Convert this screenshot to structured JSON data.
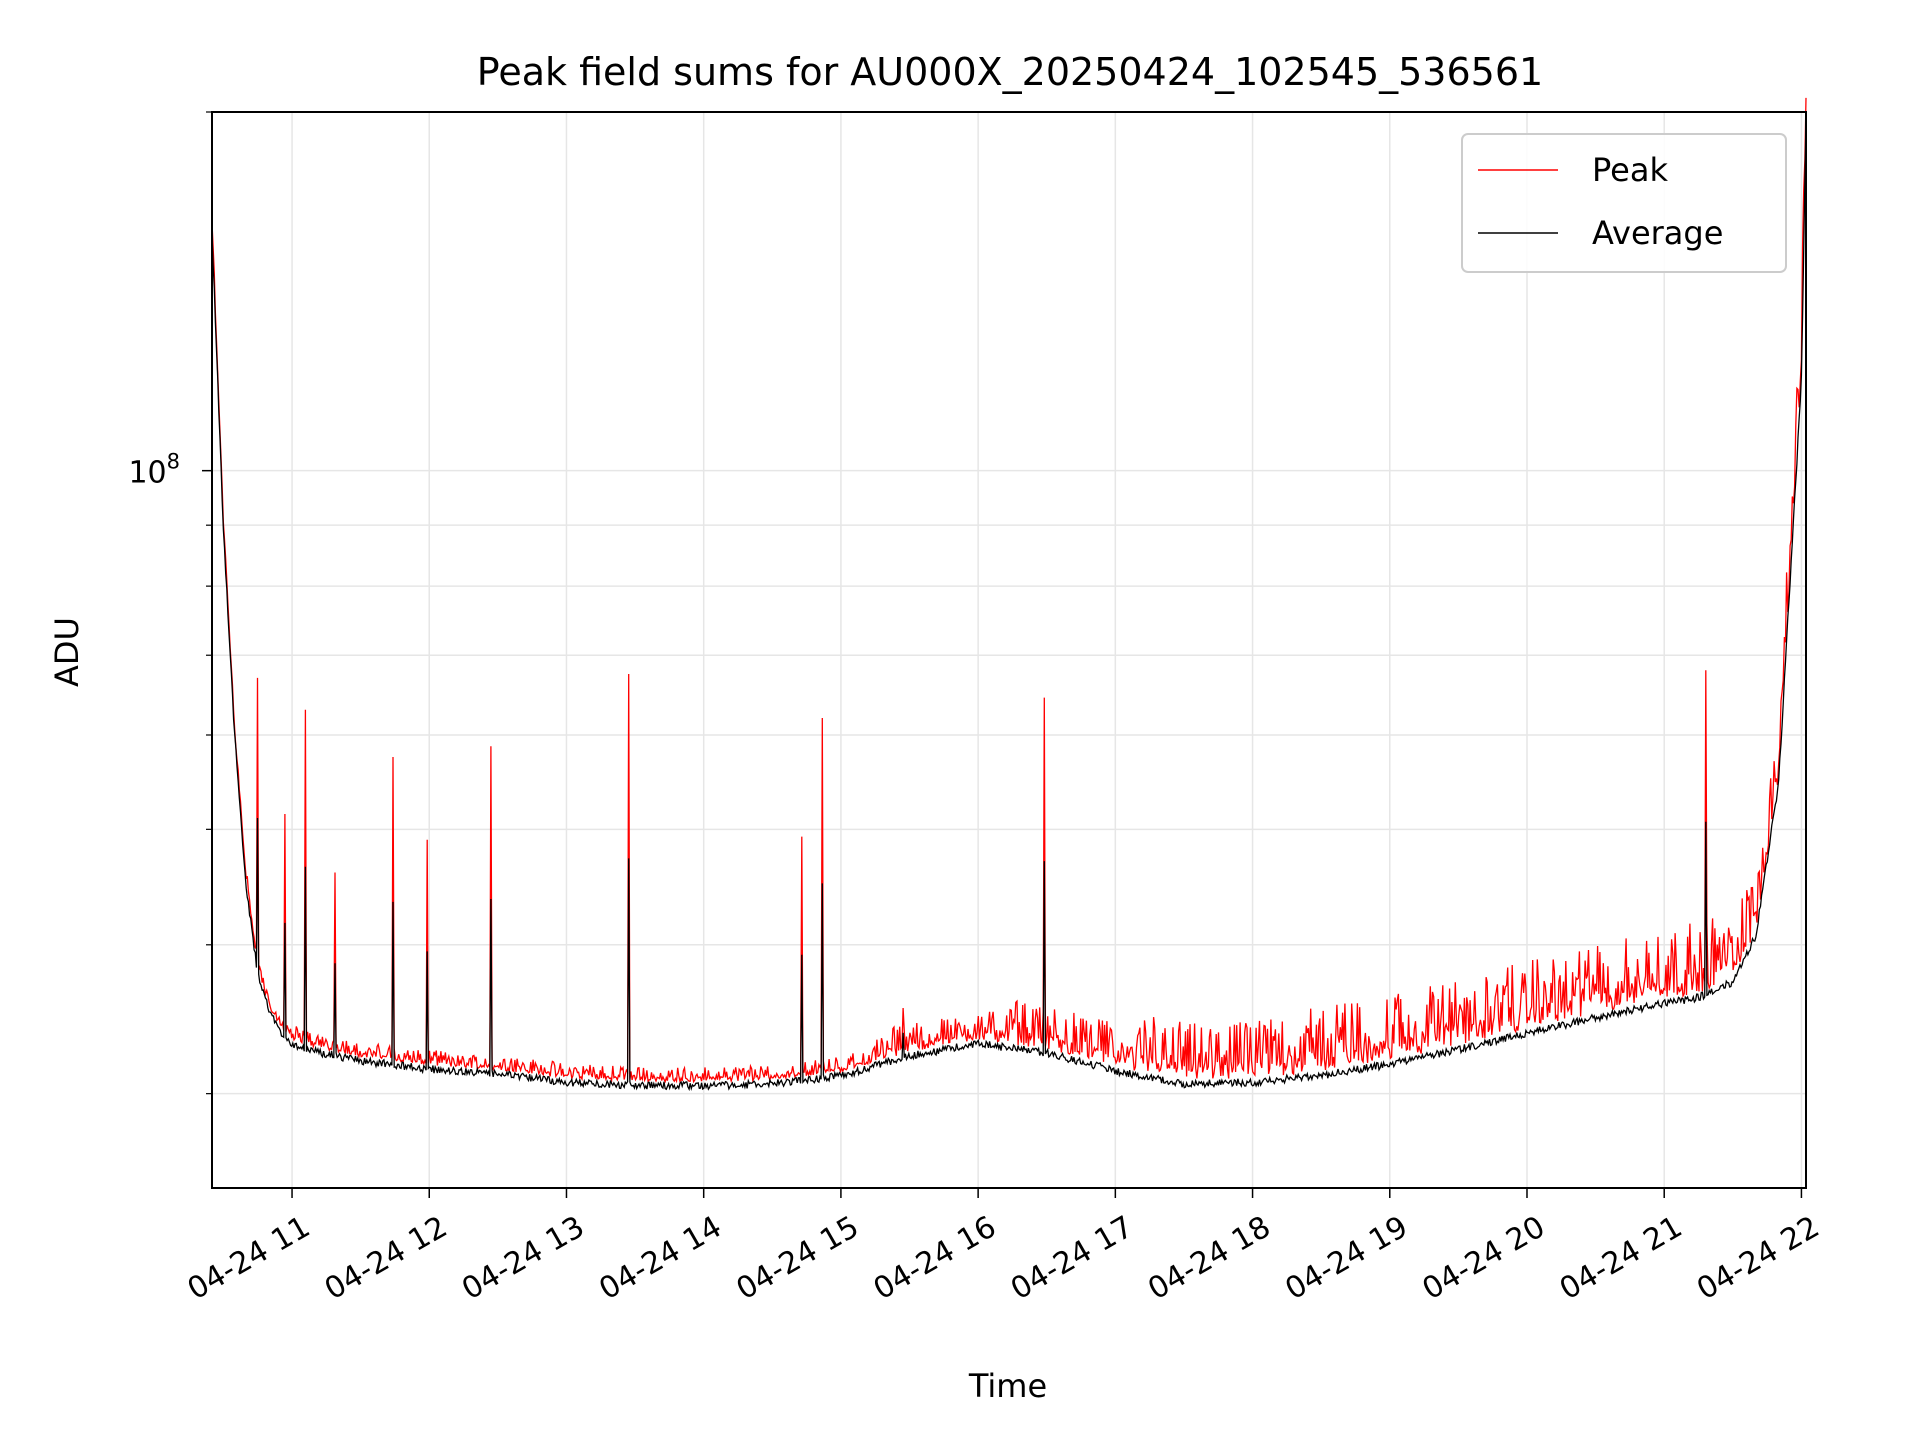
{
  "chart_data": {
    "type": "line",
    "title": "Peak field sums for AU000X_20250424_102545_536561",
    "xlabel": "Time",
    "ylabel": "ADU",
    "y_scale": "log",
    "y_tick_label": {
      "base": "10",
      "exponent": "8",
      "value": 100000000
    },
    "xlim": [
      "2025-04-24 10:25",
      "2025-04-24 22:02"
    ],
    "ylim": [
      25000000,
      200000000
    ],
    "grid": true,
    "legend": {
      "placement": "top-right",
      "entries": [
        "Peak",
        "Average"
      ]
    },
    "x_tick_labels": [
      "04-24 11",
      "04-24 12",
      "04-24 13",
      "04-24 14",
      "04-24 15",
      "04-24 16",
      "04-24 17",
      "04-24 18",
      "04-24 19",
      "04-24 20",
      "04-24 21",
      "04-24 22"
    ],
    "x_ticks": [
      "2025-04-24 11:00",
      "2025-04-24 12:00",
      "2025-04-24 13:00",
      "2025-04-24 14:00",
      "2025-04-24 15:00",
      "2025-04-24 16:00",
      "2025-04-24 17:00",
      "2025-04-24 18:00",
      "2025-04-24 19:00",
      "2025-04-24 20:00",
      "2025-04-24 21:00",
      "2025-04-24 22:00"
    ],
    "series": [
      {
        "name": "Average",
        "color": "#000000",
        "x": [
          "2025-04-24 10:25",
          "2025-04-24 10:30",
          "2025-04-24 10:35",
          "2025-04-24 10:40",
          "2025-04-24 10:45",
          "2025-04-24 10:50",
          "2025-04-24 10:55",
          "2025-04-24 11:00",
          "2025-04-24 11:10",
          "2025-04-24 11:30",
          "2025-04-24 12:00",
          "2025-04-24 12:30",
          "2025-04-24 13:00",
          "2025-04-24 13:30",
          "2025-04-24 14:00",
          "2025-04-24 14:30",
          "2025-04-24 15:00",
          "2025-04-24 15:30",
          "2025-04-24 16:00",
          "2025-04-24 16:30",
          "2025-04-24 17:00",
          "2025-04-24 17:30",
          "2025-04-24 18:00",
          "2025-04-24 18:30",
          "2025-04-24 19:00",
          "2025-04-24 19:30",
          "2025-04-24 20:00",
          "2025-04-24 20:30",
          "2025-04-24 21:00",
          "2025-04-24 21:15",
          "2025-04-24 21:30",
          "2025-04-24 21:40",
          "2025-04-24 21:50",
          "2025-04-24 22:00",
          "2025-04-24 22:02"
        ],
        "values": [
          160000000,
          90000000,
          60000000,
          45000000,
          38000000,
          35500000,
          34000000,
          33300000,
          32800000,
          32200000,
          31700000,
          31400000,
          30900000,
          30700000,
          30700000,
          30800000,
          31300000,
          32500000,
          33300000,
          32700000,
          31600000,
          30800000,
          30900000,
          31300000,
          32000000,
          32900000,
          34000000,
          35000000,
          36000000,
          36400000,
          37500000,
          41000000,
          55000000,
          120000000,
          200000000
        ]
      },
      {
        "name": "Peak",
        "color": "#ff0000",
        "noise_above_average_pct": [
          3,
          3,
          3,
          3,
          3,
          6,
          9,
          12,
          14,
          14,
          15,
          15
        ],
        "spikes": [
          {
            "x": "2025-04-24 10:45",
            "y": 67000000
          },
          {
            "x": "2025-04-24 10:57",
            "y": 51500000
          },
          {
            "x": "2025-04-24 11:06",
            "y": 63000000
          },
          {
            "x": "2025-04-24 11:19",
            "y": 46000000
          },
          {
            "x": "2025-04-24 11:44",
            "y": 57500000
          },
          {
            "x": "2025-04-24 11:59",
            "y": 49000000
          },
          {
            "x": "2025-04-24 12:27",
            "y": 58700000
          },
          {
            "x": "2025-04-24 13:27",
            "y": 67500000
          },
          {
            "x": "2025-04-24 14:43",
            "y": 49300000
          },
          {
            "x": "2025-04-24 14:52",
            "y": 62000000
          },
          {
            "x": "2025-04-24 15:27",
            "y": 35400000
          },
          {
            "x": "2025-04-24 16:29",
            "y": 64500000
          },
          {
            "x": "2025-04-24 21:18",
            "y": 68000000
          }
        ]
      }
    ]
  }
}
